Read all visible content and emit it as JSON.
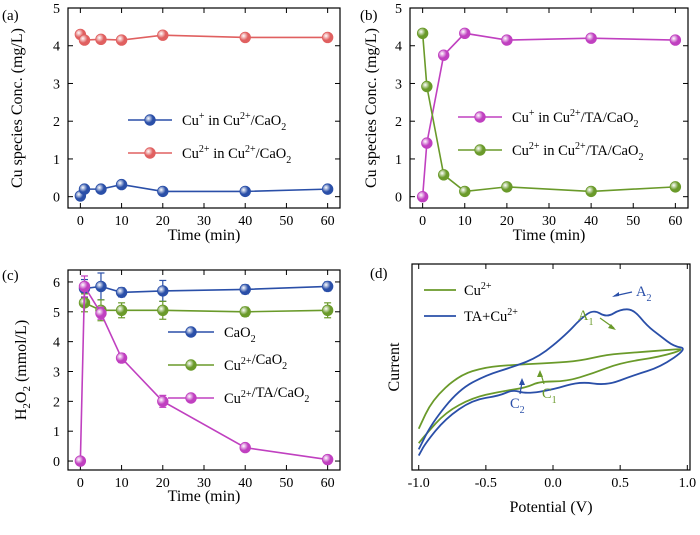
{
  "chart_data": [
    {
      "panel": "(a)",
      "type": "line",
      "xlabel": "Time (min)",
      "ylabel": "Cu species Conc. (mg/L)",
      "xlim": [
        -3,
        63
      ],
      "ylim": [
        -0.3,
        5
      ],
      "xticks": [
        0,
        10,
        20,
        30,
        40,
        50,
        60
      ],
      "yticks": [
        0,
        1,
        2,
        3,
        4,
        5
      ],
      "legend_position": "lower-right",
      "series": [
        {
          "name": "Cu+ in Cu2+/CaO2",
          "base": "Cu",
          "sup": "+",
          "mid": " in Cu",
          "sup2": "2+",
          "tail": "/CaO",
          "sub": "2",
          "color": "#2a4fa8",
          "x": [
            0,
            1,
            5,
            10,
            20,
            40,
            60
          ],
          "values": [
            0.02,
            0.2,
            0.2,
            0.32,
            0.14,
            0.14,
            0.2
          ]
        },
        {
          "name": "Cu2+ in Cu2+/CaO2",
          "base": "Cu",
          "sup": "2+",
          "mid": " in Cu",
          "sup2": "2+",
          "tail": "/CaO",
          "sub": "2",
          "color": "#e06060",
          "x": [
            0,
            1,
            5,
            10,
            20,
            40,
            60
          ],
          "values": [
            4.3,
            4.15,
            4.17,
            4.15,
            4.28,
            4.22,
            4.22
          ]
        }
      ]
    },
    {
      "panel": "(b)",
      "type": "line",
      "xlabel": "Time (min)",
      "ylabel": "Cu species Conc. (mg/L)",
      "xlim": [
        -3,
        63
      ],
      "ylim": [
        -0.3,
        5
      ],
      "xticks": [
        0,
        10,
        20,
        30,
        40,
        50,
        60
      ],
      "yticks": [
        0,
        1,
        2,
        3,
        4,
        5
      ],
      "legend_position": "center-right",
      "series": [
        {
          "name": "Cu+ in Cu2+/TA/CaO2",
          "base": "Cu",
          "sup": "+",
          "mid": " in Cu",
          "sup2": "2+",
          "tail": "/TA/CaO",
          "sub": "2",
          "color": "#c040c0",
          "x": [
            0,
            1,
            5,
            10,
            20,
            40,
            60
          ],
          "values": [
            0.0,
            1.42,
            3.75,
            4.33,
            4.15,
            4.2,
            4.15
          ]
        },
        {
          "name": "Cu2+ in Cu2+/TA/CaO2",
          "base": "Cu",
          "sup": "2+",
          "mid": " in Cu",
          "sup2": "2+",
          "tail": "/TA/CaO",
          "sub": "2",
          "color": "#6a9a2a",
          "x": [
            0,
            1,
            5,
            10,
            20,
            40,
            60
          ],
          "values": [
            4.33,
            2.92,
            0.58,
            0.14,
            0.26,
            0.14,
            0.26
          ]
        }
      ]
    },
    {
      "panel": "(c)",
      "type": "line",
      "xlabel": "Time (min)",
      "ylabel": "H2O2 (mmol/L)",
      "xlim": [
        -3,
        63
      ],
      "ylim": [
        -0.3,
        6.4
      ],
      "xticks": [
        0,
        10,
        20,
        30,
        40,
        50,
        60
      ],
      "yticks": [
        0,
        1,
        2,
        3,
        4,
        5,
        6
      ],
      "legend_position": "center-right",
      "error_bars": true,
      "series": [
        {
          "name": "CaO2",
          "base": "CaO",
          "sub": "2",
          "color": "#2a4fa8",
          "x": [
            1,
            5,
            10,
            20,
            40,
            60
          ],
          "values": [
            5.78,
            5.85,
            5.65,
            5.7,
            5.75,
            5.85
          ],
          "errors": [
            0.3,
            0.45,
            0.15,
            0.35,
            0.15,
            0.15
          ]
        },
        {
          "name": "Cu2+/CaO2",
          "base": "Cu",
          "sup": "2+",
          "tail": "/CaO",
          "sub": "2",
          "color": "#6a9a2a",
          "x": [
            1,
            5,
            10,
            20,
            40,
            60
          ],
          "values": [
            5.3,
            5.05,
            5.05,
            5.05,
            5.0,
            5.05
          ],
          "errors": [
            0.3,
            0.35,
            0.25,
            0.3,
            0.15,
            0.25
          ]
        },
        {
          "name": "Cu2+/TA/CaO2",
          "base": "Cu",
          "sup": "2+",
          "tail": "/TA/CaO",
          "sub": "2",
          "color": "#c040c0",
          "x": [
            0,
            1,
            5,
            10,
            20,
            40,
            60
          ],
          "values": [
            0.0,
            5.85,
            4.95,
            3.45,
            2.0,
            0.45,
            0.05
          ],
          "errors": [
            0.05,
            0.35,
            0.2,
            0.15,
            0.2,
            0.1,
            0.05
          ]
        }
      ]
    },
    {
      "panel": "(d)",
      "type": "line",
      "subtype": "cyclic voltammogram",
      "xlabel": "Potential (V)",
      "ylabel": "Current",
      "xlim": [
        -1.05,
        1.02
      ],
      "ylim": [
        0,
        1
      ],
      "xticks": [
        -1.0,
        -0.5,
        0.0,
        0.5,
        1.0
      ],
      "xtick_labels": [
        "-1.0",
        "-0.5",
        "0.0",
        "0.5",
        "1.0"
      ],
      "legend_position": "top-left",
      "annotations": [
        {
          "base": "A",
          "sub": "2",
          "color": "#2a4fa8"
        },
        {
          "base": "A",
          "sub": "1",
          "color": "#6a9a2a"
        },
        {
          "base": "C",
          "sub": "2",
          "color": "#2a4fa8"
        },
        {
          "base": "C",
          "sub": "1",
          "color": "#6a9a2a"
        }
      ],
      "series": [
        {
          "name": "Cu2+",
          "base": "Cu",
          "sup": "2+",
          "color": "#6a9a2a",
          "x": [
            -1.0,
            -0.9,
            -0.7,
            -0.5,
            -0.3,
            0.0,
            0.2,
            0.4,
            0.6,
            0.8,
            1.0,
            0.8,
            0.5,
            0.3,
            0.1,
            -0.1,
            -0.2,
            -0.4,
            -0.6,
            -0.8,
            -0.95,
            -1.0
          ],
          "values": [
            0.2,
            0.34,
            0.46,
            0.5,
            0.51,
            0.52,
            0.53,
            0.56,
            0.57,
            0.58,
            0.59,
            0.55,
            0.52,
            0.47,
            0.43,
            0.43,
            0.4,
            0.38,
            0.35,
            0.28,
            0.17,
            0.13
          ]
        },
        {
          "name": "TA+Cu2+",
          "base": "TA+Cu",
          "sup": "2+",
          "color": "#2a4fa8",
          "x": [
            -1.0,
            -0.9,
            -0.7,
            -0.5,
            -0.3,
            -0.1,
            0.1,
            0.2,
            0.3,
            0.4,
            0.5,
            0.6,
            0.7,
            0.8,
            0.9,
            1.0,
            0.8,
            0.6,
            0.4,
            0.2,
            0.0,
            -0.2,
            -0.3,
            -0.4,
            -0.6,
            -0.8,
            -0.95,
            -1.0
          ],
          "values": [
            0.1,
            0.23,
            0.39,
            0.46,
            0.5,
            0.55,
            0.66,
            0.73,
            0.78,
            0.74,
            0.78,
            0.78,
            0.7,
            0.65,
            0.6,
            0.59,
            0.5,
            0.46,
            0.41,
            0.43,
            0.39,
            0.37,
            0.39,
            0.36,
            0.34,
            0.25,
            0.13,
            0.07
          ]
        }
      ]
    }
  ]
}
